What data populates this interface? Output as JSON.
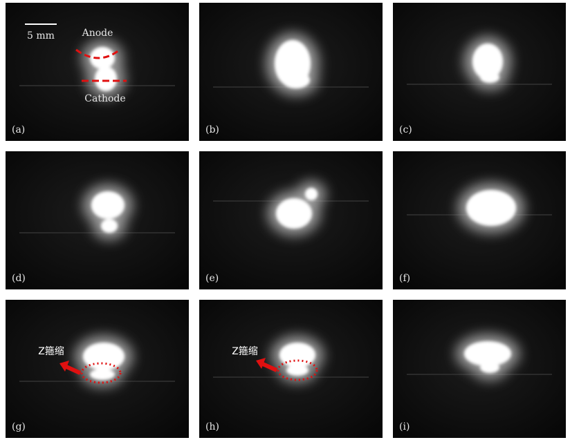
{
  "panels": [
    {
      "label": "(a)",
      "scale": "5 mm",
      "anode": "Anode",
      "cathode": "Cathode"
    },
    {
      "label": "(b)"
    },
    {
      "label": "(c)"
    },
    {
      "label": "(d)"
    },
    {
      "label": "(e)"
    },
    {
      "label": "(f)"
    },
    {
      "label": "(g)",
      "annotation": "Z箍缩"
    },
    {
      "label": "(h)",
      "annotation": "Z箍缩"
    },
    {
      "label": "(i)"
    }
  ]
}
